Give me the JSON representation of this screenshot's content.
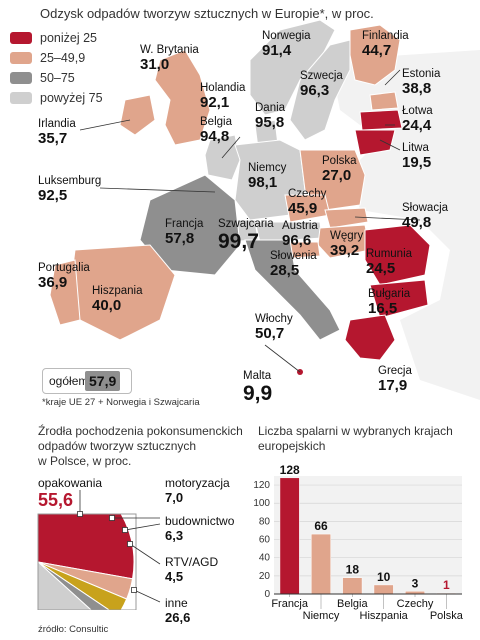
{
  "map": {
    "title": "Odzysk odpadów tworzyw sztucznych w Europie*, w proc.",
    "legend": [
      {
        "label": "poniżej 25",
        "color": "#b5172f"
      },
      {
        "label": "25–49,9",
        "color": "#e0a58c"
      },
      {
        "label": "50–75",
        "color": "#8f8f8f"
      },
      {
        "label": "powyżej 75",
        "color": "#cfcfcf"
      }
    ],
    "countries": [
      {
        "name": "Norwegia",
        "value": "91,4"
      },
      {
        "name": "Finlandia",
        "value": "44,7"
      },
      {
        "name": "W. Brytania",
        "value": "31,0"
      },
      {
        "name": "Szwecja",
        "value": "96,3"
      },
      {
        "name": "Estonia",
        "value": "38,8"
      },
      {
        "name": "Holandia",
        "value": "92,1"
      },
      {
        "name": "Łotwa",
        "value": "24,4"
      },
      {
        "name": "Dania",
        "value": "95,8"
      },
      {
        "name": "Irlandia",
        "value": "35,7"
      },
      {
        "name": "Belgia",
        "value": "94,8"
      },
      {
        "name": "Litwa",
        "value": "19,5"
      },
      {
        "name": "Polska",
        "value": "27,0"
      },
      {
        "name": "Niemcy",
        "value": "98,1"
      },
      {
        "name": "Luksemburg",
        "value": "92,5"
      },
      {
        "name": "Czechy",
        "value": "45,9"
      },
      {
        "name": "Słowacja",
        "value": "49,8"
      },
      {
        "name": "Francja",
        "value": "57,8"
      },
      {
        "name": "Szwajcaria",
        "value": "99,7"
      },
      {
        "name": "Austria",
        "value": "96,6"
      },
      {
        "name": "Węgry",
        "value": "39,2"
      },
      {
        "name": "Rumunia",
        "value": "24,5"
      },
      {
        "name": "Słowenia",
        "value": "28,5"
      },
      {
        "name": "Portugalia",
        "value": "36,9"
      },
      {
        "name": "Hiszpania",
        "value": "40,0"
      },
      {
        "name": "Bułgaria",
        "value": "16,5"
      },
      {
        "name": "Włochy",
        "value": "50,7"
      },
      {
        "name": "Malta",
        "value": "9,9"
      },
      {
        "name": "Grecja",
        "value": "17,9"
      }
    ],
    "total_label": "ogółem",
    "total_value": "57,9",
    "footnote": "*kraje UE 27 + Norwegia i Szwajcaria"
  },
  "pie": {
    "title_lines": [
      "Źrodła pochodzenia pokonsumenckich",
      "odpadów tworzyw sztucznych",
      "w Polsce, w proc."
    ],
    "slices": [
      {
        "name": "opakowania",
        "value": 55.6,
        "label": "55,6",
        "color": "#b5172f"
      },
      {
        "name": "motoryzacja",
        "value": 7.0,
        "label": "7,0",
        "color": "#e0a58c"
      },
      {
        "name": "budownictwo",
        "value": 6.3,
        "label": "6,3",
        "color": "#c8a21c"
      },
      {
        "name": "RTV/AGD",
        "value": 4.5,
        "label": "4,5",
        "color": "#8f8f8f"
      },
      {
        "name": "inne",
        "value": 26.6,
        "label": "26,6",
        "color": "#cfcfcf"
      }
    ]
  },
  "chart_data": {
    "type": "bar",
    "title": "Liczba spalarni w wybranych krajach europejskich",
    "categories": [
      "Francja",
      "Niemcy",
      "Belgia",
      "Hiszpania",
      "Czechy",
      "Polska"
    ],
    "values": [
      128,
      66,
      18,
      10,
      3,
      1
    ],
    "ylim": [
      0,
      130
    ],
    "yticks": [
      0,
      20,
      40,
      60,
      80,
      100,
      120
    ],
    "highlight_color": "#b5172f",
    "bar_color": "#e0a58c",
    "grid": true
  },
  "source": "źródło: Consultic"
}
